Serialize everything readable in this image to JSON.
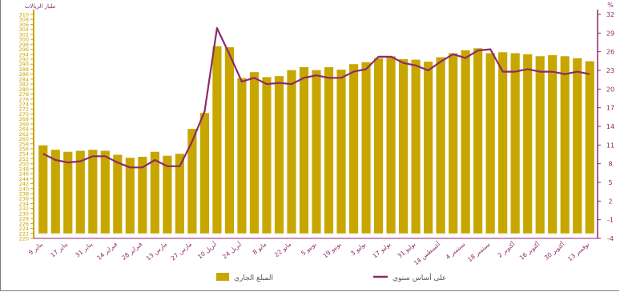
{
  "chart_data": {
    "type": "bar",
    "left_axis": {
      "title": "مليار الريالات",
      "ylim": [
        220,
        310
      ],
      "step": 2,
      "label_every": 1,
      "ticks": [
        220,
        222,
        224,
        226,
        228,
        230,
        232,
        234,
        236,
        238,
        240,
        242,
        244,
        246,
        248,
        250,
        252,
        254,
        256,
        258,
        260,
        262,
        264,
        266,
        268,
        270,
        272,
        274,
        276,
        278,
        280,
        282,
        284,
        286,
        288,
        290,
        292,
        294,
        296,
        298,
        300,
        302,
        304,
        306,
        308,
        310
      ]
    },
    "right_axis": {
      "title": "%",
      "ylim": [
        -4,
        32
      ],
      "ticks": [
        -4,
        -1,
        2,
        5,
        8,
        11,
        14,
        17,
        20,
        23,
        26,
        29,
        32
      ]
    },
    "categories": [
      "9 يناير",
      "",
      "17 يناير",
      "",
      "31 يناير",
      "",
      "14 فبراير",
      "",
      "28 فبراير",
      "",
      "13 مارس",
      "",
      "27 مارس",
      "",
      "10 أبريل",
      "",
      "24 أبريل",
      "",
      "8 مايو",
      "",
      "22 مايو",
      "",
      "5 يونيو",
      "",
      "19 يونيو",
      "",
      "3 يوليو",
      "",
      "17 يوليو",
      "",
      "31 يوليو",
      "",
      "14 أغسطس",
      "",
      "4 سبتمبر",
      "",
      "18 سبتمبر",
      "",
      "2 أكتوبر",
      "",
      "16 أكتوبر",
      "",
      "30 أكتوبر",
      "",
      "13 نوفمبر"
    ],
    "series": [
      {
        "name": "المبلغ الجاري",
        "kind": "bar",
        "axis": "left",
        "color": "#c8a600",
        "values": [
          257.4,
          255.6,
          254.8,
          255.2,
          255.6,
          255.2,
          253.6,
          252.4,
          252.8,
          254.8,
          253.2,
          254.0,
          264.0,
          270.4,
          297.2,
          296.8,
          284.4,
          286.8,
          284.8,
          285.2,
          287.6,
          288.8,
          287.6,
          288.8,
          287.8,
          290.0,
          290.8,
          292.4,
          293.2,
          292.0,
          291.8,
          291.0,
          292.8,
          294.4,
          295.6,
          296.4,
          294.4,
          294.8,
          294.4,
          294.0,
          293.2,
          293.6,
          293.2,
          292.4,
          291.2
        ]
      },
      {
        "name": "على أساس سنوي",
        "kind": "line",
        "axis": "right",
        "color": "#8b2a6b",
        "values": [
          9.6,
          8.6,
          8.2,
          8.4,
          9.2,
          9.2,
          8.2,
          7.4,
          7.4,
          8.6,
          7.6,
          7.6,
          11.6,
          16.4,
          29.8,
          25.6,
          21.2,
          21.8,
          20.8,
          21.0,
          20.8,
          21.8,
          22.2,
          21.8,
          21.8,
          22.8,
          23.2,
          25.2,
          25.2,
          24.2,
          23.8,
          23.0,
          24.4,
          25.6,
          25.0,
          26.2,
          26.4,
          22.8,
          22.8,
          23.2,
          22.8,
          22.8,
          22.4,
          22.8,
          22.4
        ]
      }
    ],
    "legend": [
      {
        "label": "المبلغ الجاري",
        "kind": "bar",
        "color": "#c8a600"
      },
      {
        "label": "على أساس سنوي",
        "kind": "line",
        "color": "#8b2a6b"
      }
    ],
    "legend_position": "bottom",
    "grid": false
  }
}
